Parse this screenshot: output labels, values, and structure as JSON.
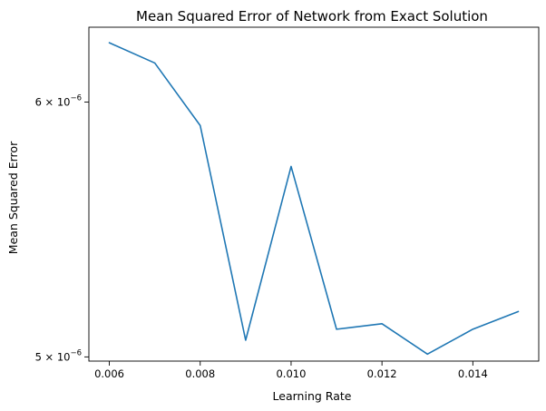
{
  "chart_data": {
    "type": "line",
    "title": "Mean Squared Error of Network from Exact Solution",
    "xlabel": "Learning Rate",
    "ylabel": "Mean Squared Error",
    "xlim": [
      0.00555,
      0.01545
    ],
    "ylim": [
      4.985e-06,
      6.33e-06
    ],
    "yscale": "log",
    "grid": false,
    "x_ticks": [
      0.006,
      0.008,
      0.01,
      0.012,
      0.014
    ],
    "x_tick_labels": [
      "0.006",
      "0.008",
      "0.010",
      "0.012",
      "0.014"
    ],
    "y_ticks": [
      6e-06,
      5e-06
    ],
    "y_tick_labels": [
      {
        "mantissa": "6",
        "times": "×",
        "base": "10",
        "exponent": "−6"
      },
      {
        "mantissa": "5",
        "times": "×",
        "base": "10",
        "exponent": "−6"
      }
    ],
    "series": [
      {
        "color": "#1f77b4",
        "x": [
          0.006,
          0.007,
          0.008,
          0.009,
          0.01,
          0.011,
          0.012,
          0.013,
          0.014,
          0.015
        ],
        "y": [
          6.26e-06,
          6.17e-06,
          5.9e-06,
          5.06e-06,
          5.73e-06,
          5.1e-06,
          5.12e-06,
          5.01e-06,
          5.1e-06,
          5.165e-06
        ]
      }
    ]
  }
}
